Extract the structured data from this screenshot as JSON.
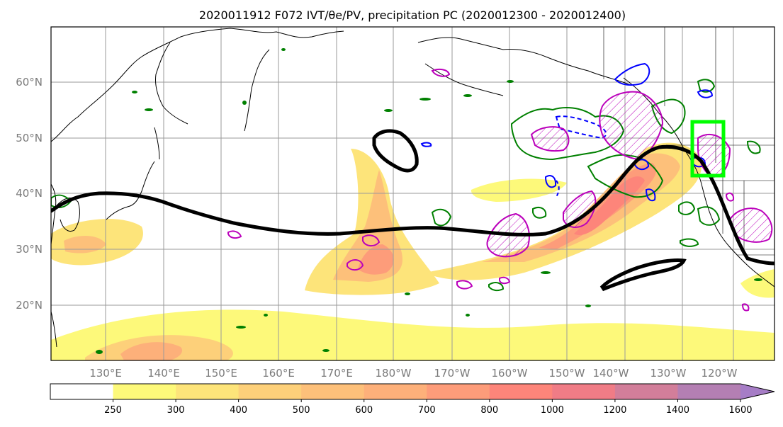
{
  "title": "2020011912 F072 IVT/θe/PV, precipitation PC (2020012300 - 2020012400)",
  "lat_labels": [
    "60°N",
    "50°N",
    "40°N",
    "30°N",
    "20°N"
  ],
  "lon_labels": [
    "130°E",
    "140°E",
    "150°E",
    "160°E",
    "170°E",
    "180°W",
    "170°W",
    "160°W",
    "150°W",
    "140°W",
    "130°W",
    "120°W"
  ],
  "colorbar": {
    "ticks": [
      "250",
      "300",
      "400",
      "500",
      "600",
      "700",
      "800",
      "1000",
      "1200",
      "1400",
      "1600"
    ],
    "colors": [
      "#ffffff",
      "#fdf97a",
      "#fde47a",
      "#fdd07a",
      "#fdc07a",
      "#fdb07a",
      "#fd9c7a",
      "#fd857a",
      "#f07c86",
      "#d27e9a",
      "#b47fb3",
      "#a67dc6"
    ]
  },
  "colors": {
    "geopotential_contour": "#000000",
    "theta_contour": "#008000",
    "pv_contour": "#0000ff",
    "precip_contour": "#bb00bb",
    "target_box": "#00ff00"
  }
}
